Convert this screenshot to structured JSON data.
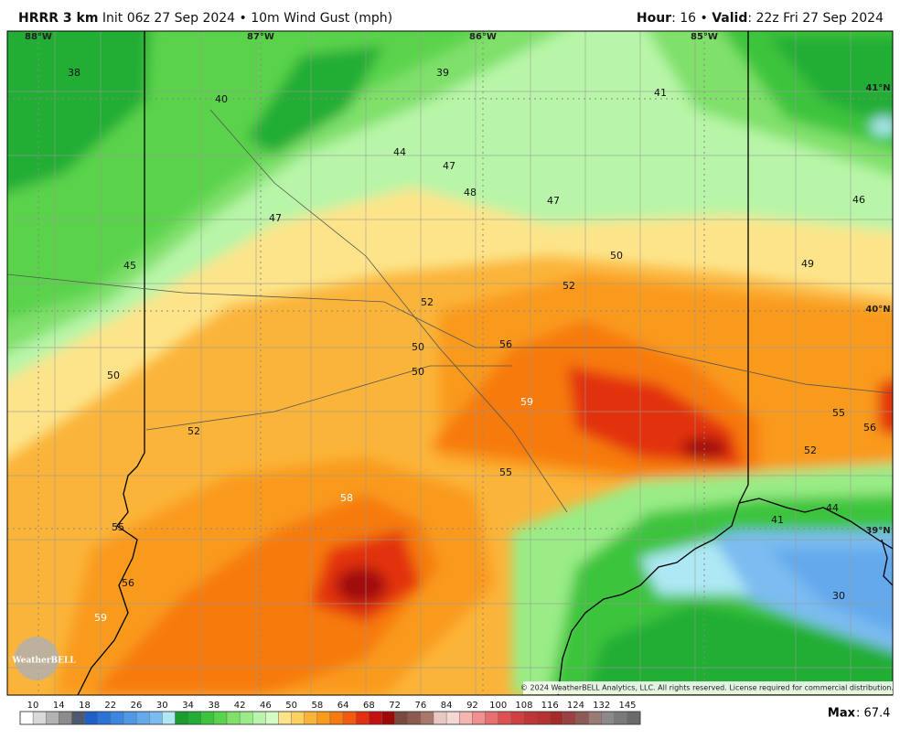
{
  "header": {
    "model": "HRRR 3 km",
    "init": " Init 06z 27 Sep 2024 • 10m Wind Gust (mph)",
    "hour_label": "Hour",
    "hour_value": ": 16 • ",
    "valid_label": "Valid",
    "valid_value": ": 22z Fri 27 Sep 2024"
  },
  "grid_labels": [
    "88°W",
    "87°W",
    "86°W",
    "85°W",
    "41°N",
    "40°N",
    "39°N"
  ],
  "field_labels": [
    38,
    40,
    39,
    41,
    44,
    47,
    48,
    47,
    46,
    47,
    45,
    50,
    49,
    52,
    52,
    50,
    56,
    50,
    50,
    59,
    55,
    56,
    52,
    52,
    55,
    58,
    44,
    41,
    55,
    56,
    30,
    59
  ],
  "logo": "WeatherBELL",
  "copyright": "© 2024 WeatherBELL Analytics, LLC. All rights reserved. License required for commercial distribution.",
  "colorbar": {
    "ticks": [
      10,
      14,
      18,
      22,
      26,
      30,
      34,
      38,
      42,
      46,
      50,
      58,
      64,
      68,
      72,
      76,
      84,
      92,
      100,
      108,
      116,
      124,
      132,
      145
    ],
    "colors": [
      "#ffffff",
      "#d9d9d9",
      "#b3b3b3",
      "#8c8c8c",
      "#4d5a6e",
      "#1e5fc8",
      "#2a74d8",
      "#3b86e0",
      "#4e98e6",
      "#63a9ec",
      "#7bbcf0",
      "#aee8f5",
      "#1a9c2e",
      "#22ad36",
      "#3cc43e",
      "#5ad34c",
      "#7fe06a",
      "#9aec86",
      "#b8f5a8",
      "#d5fbc5",
      "#fde48a",
      "#fdd060",
      "#fbb43a",
      "#f99a1a",
      "#f77a10",
      "#f35a10",
      "#e23010",
      "#c41010",
      "#a00808",
      "#7a4a40",
      "#8c5a50",
      "#a8786a",
      "#e8c8c0",
      "#f4d8d4",
      "#f5b5b0",
      "#f09090",
      "#e87070",
      "#e05050",
      "#d04040",
      "#c03535",
      "#b83030",
      "#a52a2a",
      "#9a4040",
      "#8e5a55",
      "#9a7a75",
      "#8a8a8a",
      "#7a7a7a",
      "#6a6a6a"
    ]
  },
  "max": {
    "label": "Max",
    "value": ": 67.4"
  }
}
